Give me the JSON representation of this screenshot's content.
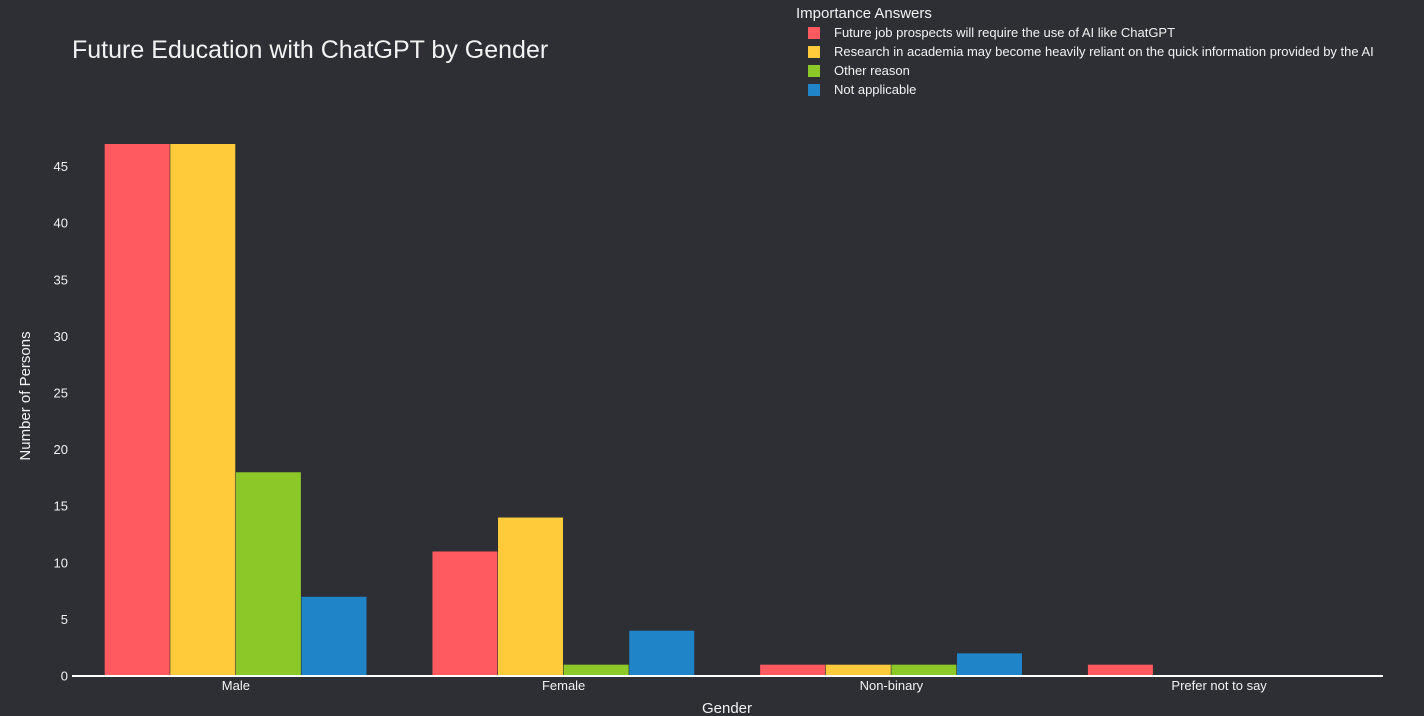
{
  "chart_data": {
    "type": "bar",
    "title": "Future Education with ChatGPT by Gender",
    "xlabel": "Gender",
    "ylabel": "Number of Persons",
    "ylim": [
      0,
      47
    ],
    "yticks": [
      0,
      5,
      10,
      15,
      20,
      25,
      30,
      35,
      40,
      45
    ],
    "grid": false,
    "legend_title": "Importance Answers",
    "legend_position": "top-right",
    "categories": [
      "Male",
      "Female",
      "Non-binary",
      "Prefer not to say"
    ],
    "series": [
      {
        "name": "Future job prospects will require the use of AI like ChatGPT",
        "color": "#ff5a5f",
        "values": [
          47,
          11,
          1,
          1
        ]
      },
      {
        "name": "Research in academia may become heavily reliant on the quick information provided by the AI",
        "color": "#ffcb3b",
        "values": [
          47,
          14,
          1,
          0
        ]
      },
      {
        "name": "Other reason",
        "color": "#8cc827",
        "values": [
          18,
          1,
          1,
          0
        ]
      },
      {
        "name": "Not applicable",
        "color": "#1f85c8",
        "values": [
          7,
          4,
          2,
          0
        ]
      }
    ]
  }
}
